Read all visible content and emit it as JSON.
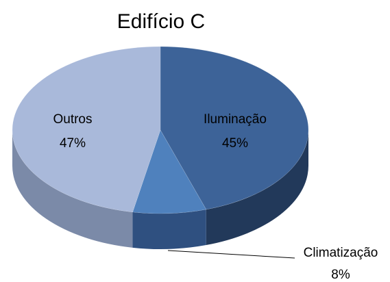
{
  "chart_data": {
    "type": "pie",
    "title": "Edifício C",
    "categories": [
      "Iluminação",
      "Climatização",
      "Outros"
    ],
    "values": [
      45,
      8,
      47
    ],
    "value_labels": [
      "45%",
      "8%",
      "47%"
    ],
    "colors": [
      "#3d6398",
      "#4f81bd",
      "#a9b9da"
    ],
    "side_colors": [
      "#22395a",
      "#2f5080",
      "#7b8aa8"
    ]
  }
}
